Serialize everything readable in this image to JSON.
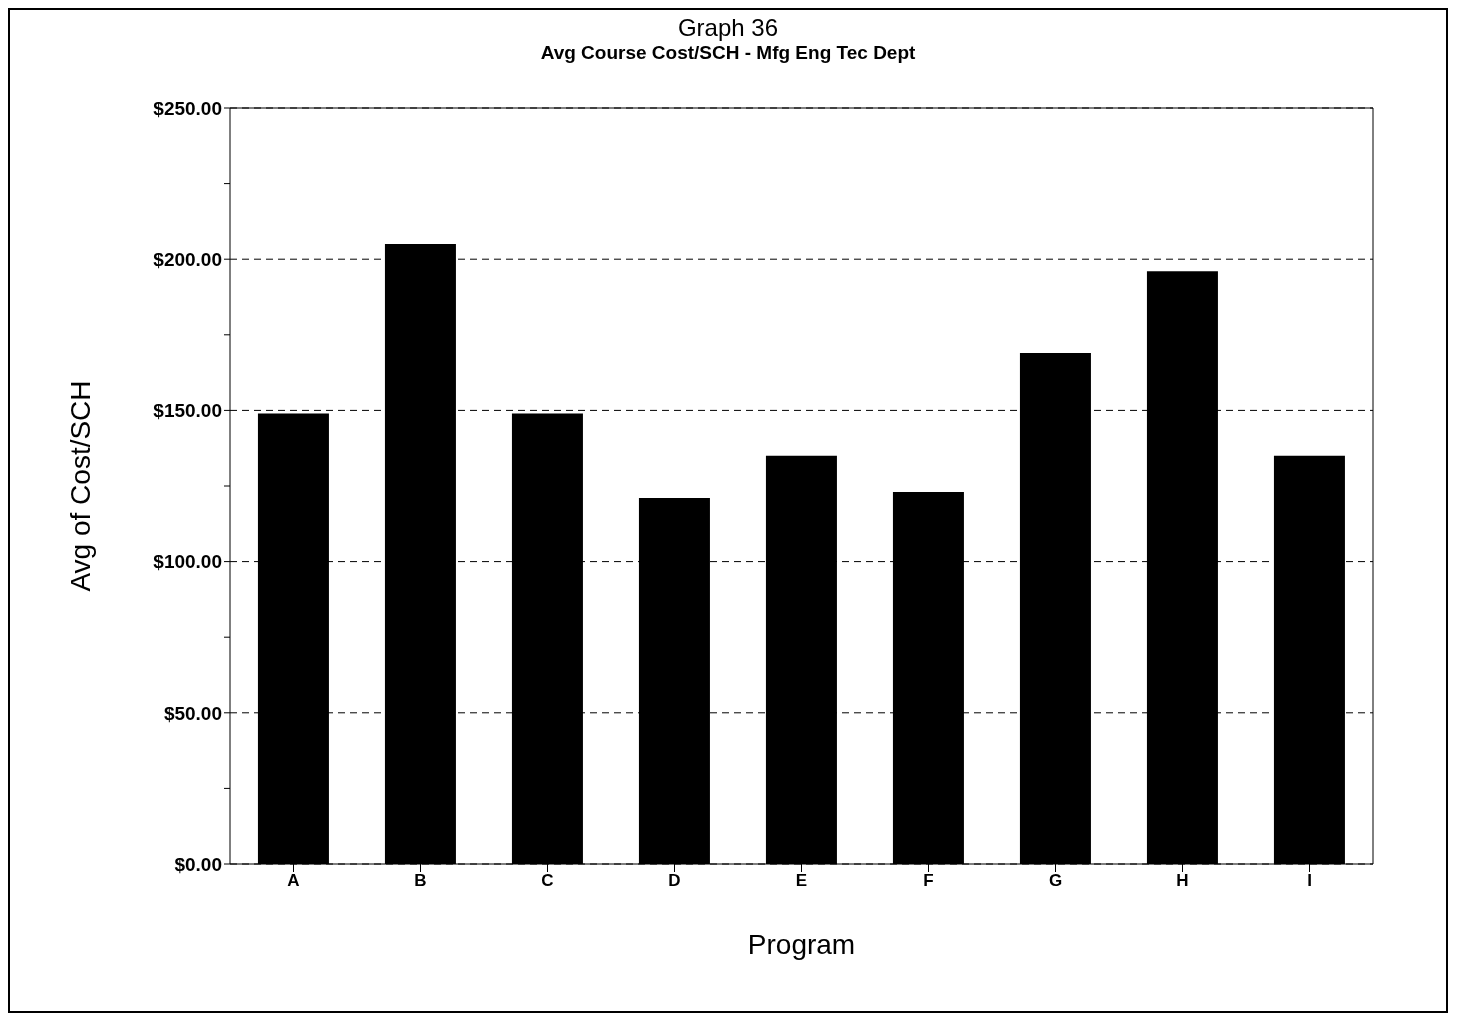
{
  "chart_data": {
    "type": "bar",
    "title": "Graph 36",
    "subtitle": "Avg Course Cost/SCH - Mfg Eng Tec Dept",
    "xlabel": "Program",
    "ylabel": "Avg of Cost/SCH",
    "categories": [
      "A",
      "B",
      "C",
      "D",
      "E",
      "F",
      "G",
      "H",
      "I"
    ],
    "values": [
      149,
      205,
      149,
      121,
      135,
      123,
      169,
      196,
      135
    ],
    "color": "#000000",
    "ylim": [
      0,
      250
    ],
    "yticks": [
      {
        "value": 0,
        "label": "$0.00"
      },
      {
        "value": 25,
        "label": null
      },
      {
        "value": 50,
        "label": "$50.00"
      },
      {
        "value": 75,
        "label": null
      },
      {
        "value": 100,
        "label": "$100.00"
      },
      {
        "value": 125,
        "label": null
      },
      {
        "value": 150,
        "label": "$150.00"
      },
      {
        "value": 175,
        "label": null
      },
      {
        "value": 200,
        "label": "$200.00"
      },
      {
        "value": 225,
        "label": null
      },
      {
        "value": 250,
        "label": "$250.00"
      }
    ],
    "grid": "y",
    "legend": false
  }
}
